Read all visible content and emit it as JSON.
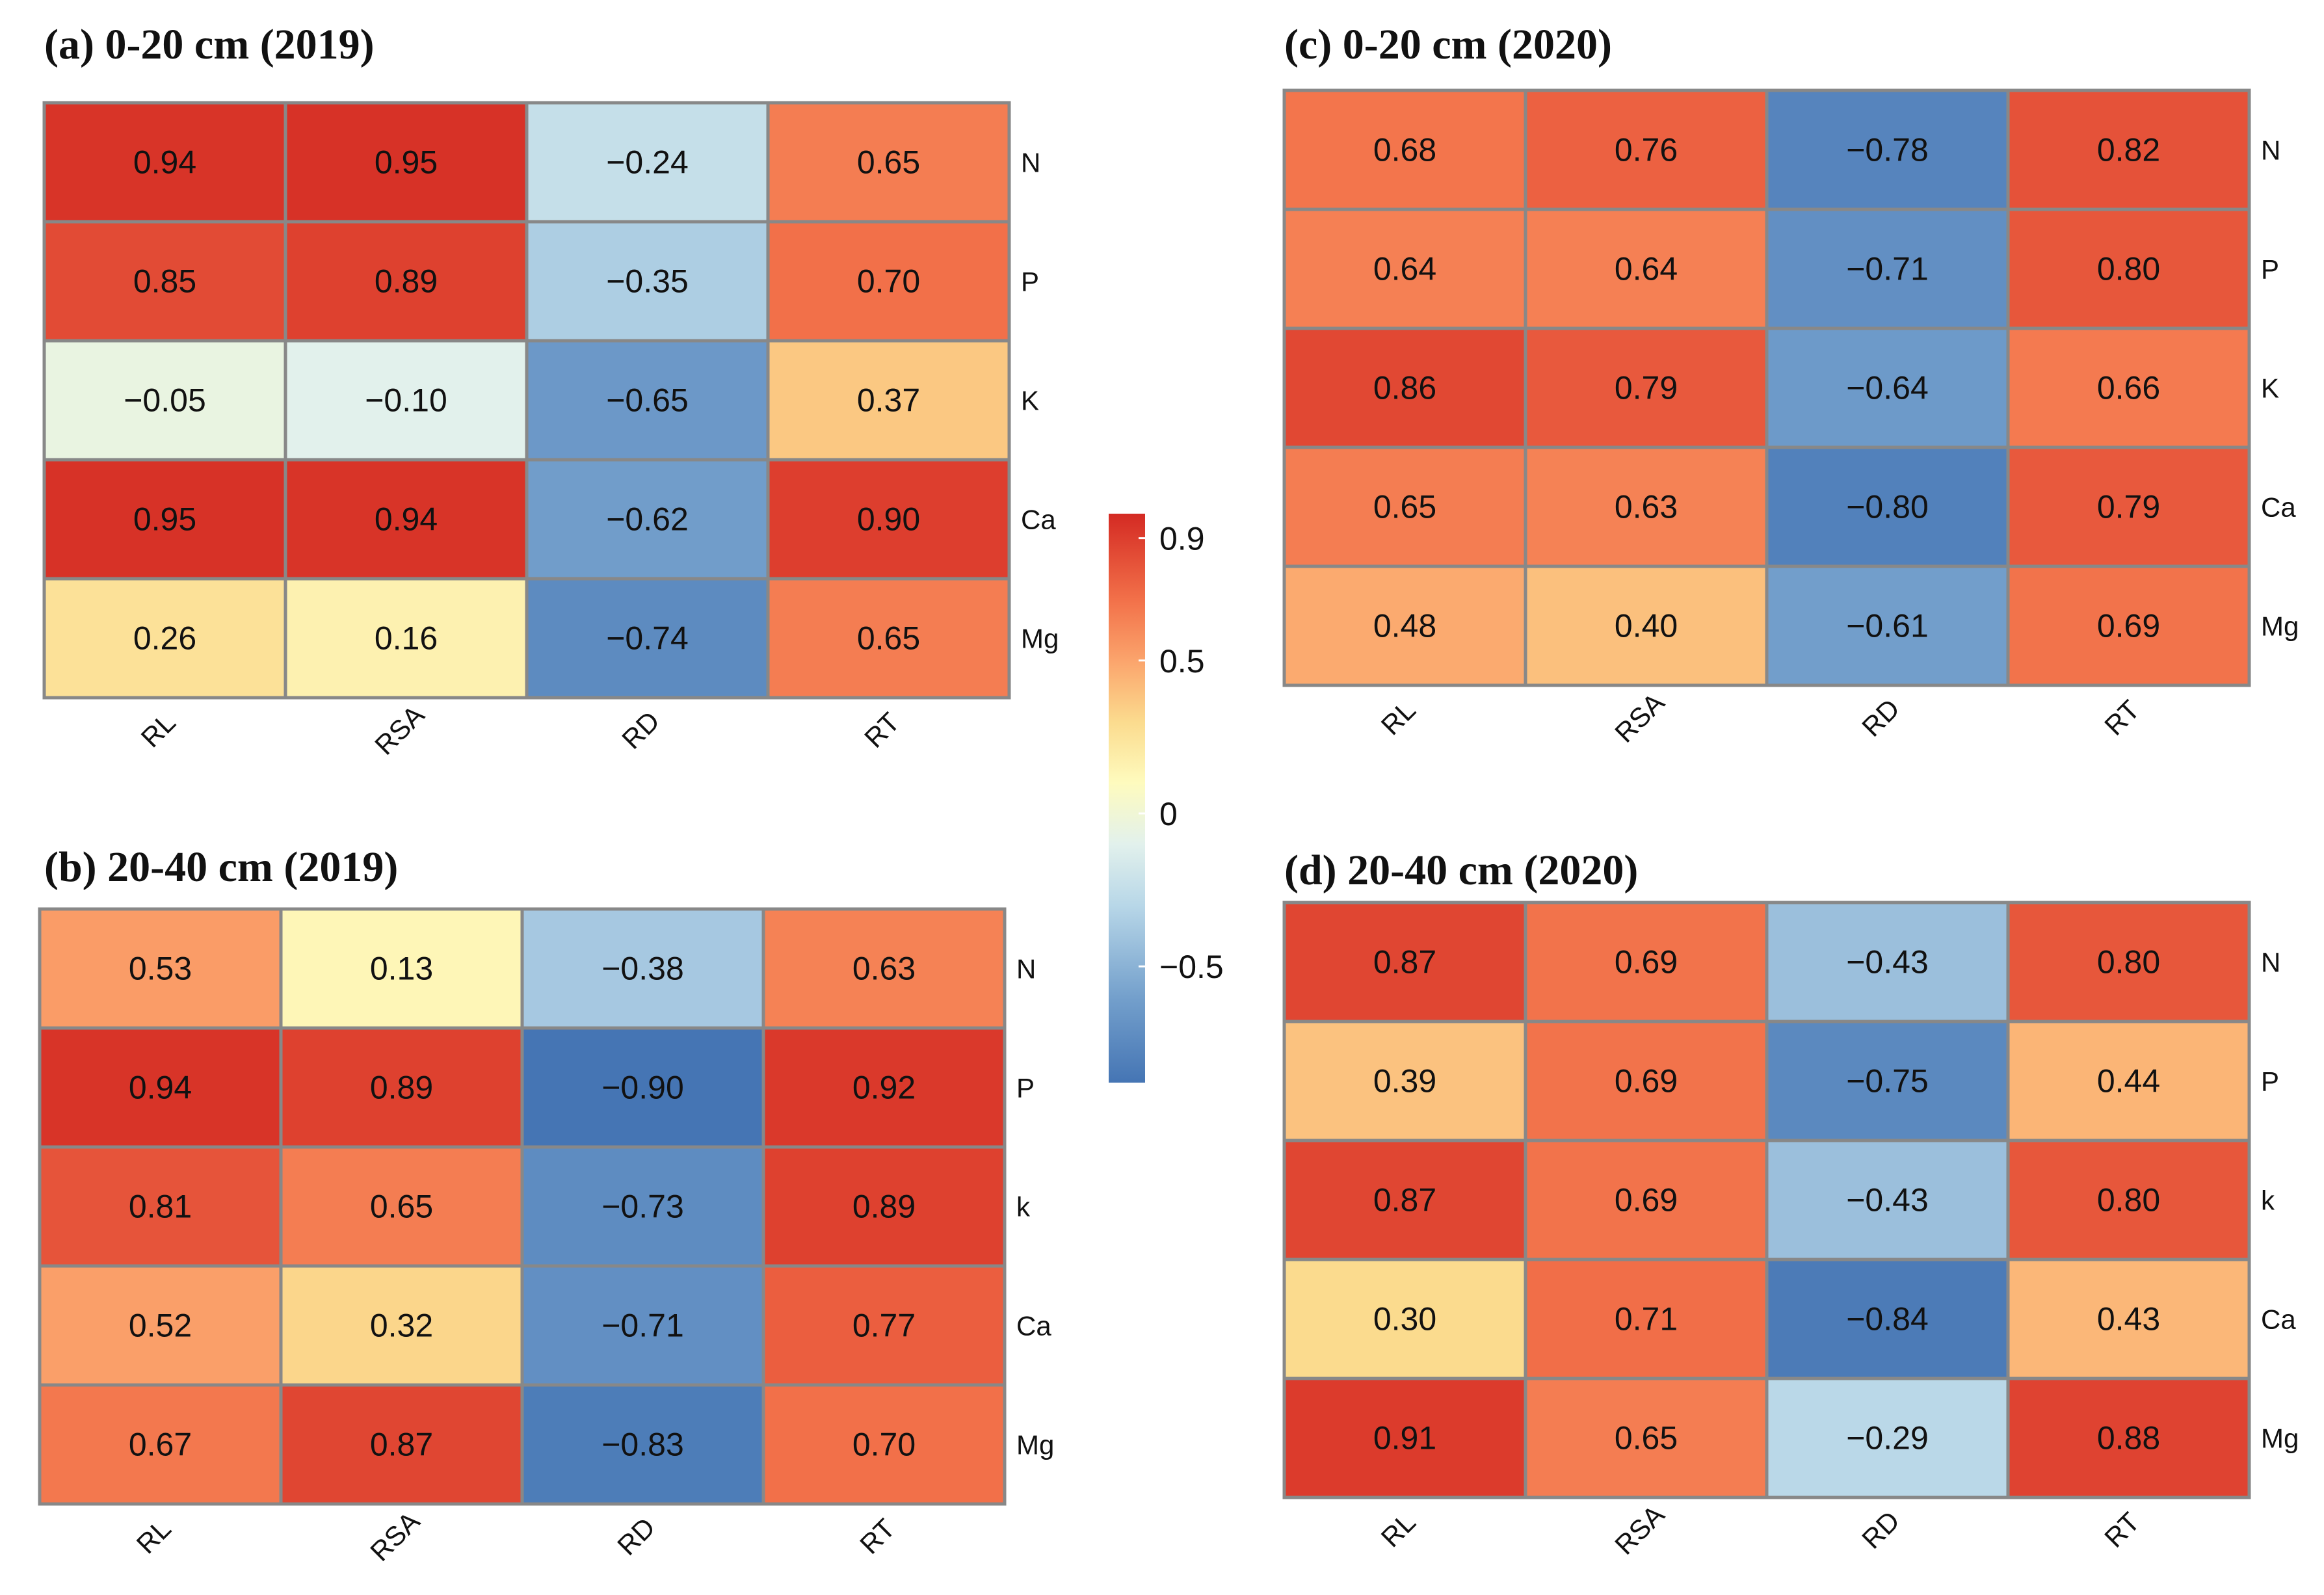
{
  "chart_data": [
    {
      "type": "heatmap",
      "title": "(a) 0-20 cm (2019)",
      "columns": [
        "RL",
        "RSA",
        "RD",
        "RT"
      ],
      "rows": [
        "N",
        "P",
        "K",
        "Ca",
        "Mg"
      ],
      "values": [
        [
          "0.94",
          "0.95",
          "−0.24",
          "0.65"
        ],
        [
          "0.85",
          "0.89",
          "−0.35",
          "0.70"
        ],
        [
          "−0.05",
          "−0.10",
          "−0.65",
          "0.37"
        ],
        [
          "0.95",
          "0.94",
          "−0.62",
          "0.90"
        ],
        [
          "0.26",
          "0.16",
          "−0.74",
          "0.65"
        ]
      ]
    },
    {
      "type": "heatmap",
      "title": "(b) 20-40 cm (2019)",
      "columns": [
        "RL",
        "RSA",
        "RD",
        "RT"
      ],
      "rows": [
        "N",
        "P",
        "k",
        "Ca",
        "Mg"
      ],
      "values": [
        [
          "0.53",
          "0.13",
          "−0.38",
          "0.63"
        ],
        [
          "0.94",
          "0.89",
          "−0.90",
          "0.92"
        ],
        [
          "0.81",
          "0.65",
          "−0.73",
          "0.89"
        ],
        [
          "0.52",
          "0.32",
          "−0.71",
          "0.77"
        ],
        [
          "0.67",
          "0.87",
          "−0.83",
          "0.70"
        ]
      ]
    },
    {
      "type": "heatmap",
      "title": "(c) 0-20 cm (2020)",
      "columns": [
        "RL",
        "RSA",
        "RD",
        "RT"
      ],
      "rows": [
        "N",
        "P",
        "K",
        "Ca",
        "Mg"
      ],
      "values": [
        [
          "0.68",
          "0.76",
          "−0.78",
          "0.82"
        ],
        [
          "0.64",
          "0.64",
          "−0.71",
          "0.80"
        ],
        [
          "0.86",
          "0.79",
          "−0.64",
          "0.66"
        ],
        [
          "0.65",
          "0.63",
          "−0.80",
          "0.79"
        ],
        [
          "0.48",
          "0.40",
          "−0.61",
          "0.69"
        ]
      ]
    },
    {
      "type": "heatmap",
      "title": "(d) 20-40 cm (2020)",
      "columns": [
        "RL",
        "RSA",
        "RD",
        "RT"
      ],
      "rows": [
        "N",
        "P",
        "k",
        "Ca",
        "Mg"
      ],
      "values": [
        [
          "0.87",
          "0.69",
          "−0.43",
          "0.80"
        ],
        [
          "0.39",
          "0.69",
          "−0.75",
          "0.44"
        ],
        [
          "0.87",
          "0.69",
          "−0.43",
          "0.80"
        ],
        [
          "0.30",
          "0.71",
          "−0.84",
          "0.43"
        ],
        [
          "0.91",
          "0.65",
          "−0.29",
          "0.88"
        ]
      ]
    }
  ],
  "colorbar": {
    "range": [
      -0.88,
      0.98
    ],
    "ticks": [
      {
        "value": 0.9,
        "label": "0.9"
      },
      {
        "value": 0.5,
        "label": "0.5"
      },
      {
        "value": 0,
        "label": "0"
      },
      {
        "value": -0.5,
        "label": "−0.5"
      }
    ],
    "colors": [
      {
        "value": -0.88,
        "color": "#4575b4"
      },
      {
        "value": -0.6,
        "color": "#74a0cc"
      },
      {
        "value": -0.3,
        "color": "#b8d7e8"
      },
      {
        "value": -0.1,
        "color": "#e2f1ec"
      },
      {
        "value": 0.1,
        "color": "#fefbbe"
      },
      {
        "value": 0.3,
        "color": "#fbdb8e"
      },
      {
        "value": 0.5,
        "color": "#fba46c"
      },
      {
        "value": 0.7,
        "color": "#f27049"
      },
      {
        "value": 0.98,
        "color": "#d42a23"
      }
    ]
  }
}
